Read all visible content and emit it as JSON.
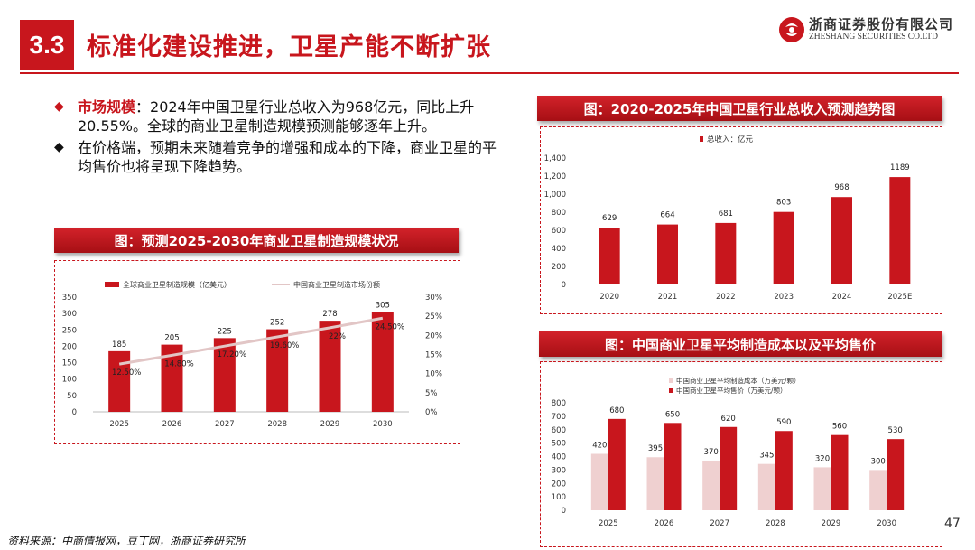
{
  "header": {
    "section_number": "3.3",
    "title": "标准化建设推进，卫星产能不断扩张",
    "logo_cn": "浙商证券股份有限公司",
    "logo_en": "ZHESHANG SECURITIES CO.LTD"
  },
  "bullets": [
    {
      "label": "市场规模",
      "text": "：2024年中国卫星行业总收入为968亿元，同比上升20.55%。全球的商业卫星制造规模预测能够逐年上升。"
    },
    {
      "label": "",
      "text": "在价格端，预期未来随着竞争的增强和成本的下降，商业卫星的平均售价也将呈现下降趋势。"
    }
  ],
  "chart_titles": {
    "left": "图：预测2025-2030年商业卫星制造规模状况",
    "right_top": "图：2020-2025年中国卫星行业总收入预测趋势图",
    "right_bottom": "图：中国商业卫星平均制造成本以及平均售价"
  },
  "footer": {
    "source": "资料来源：中商情报网，豆丁网，浙商证券研究所",
    "page_number": "47"
  },
  "colors": {
    "accent": "#c8161d",
    "light_bar": "#efd0d0",
    "line": "#e2c6c6"
  },
  "chart_data": [
    {
      "type": "bar",
      "categories": [
        "2025",
        "2026",
        "2027",
        "2028",
        "2029",
        "2030"
      ],
      "series": [
        {
          "name": "全球商业卫星制造规模（亿美元）",
          "values": [
            185,
            205,
            225,
            252,
            278,
            305
          ],
          "axis": "left"
        },
        {
          "name": "中国商业卫星制造市场份额",
          "type": "line",
          "values": [
            12.5,
            14.8,
            17.2,
            19.6,
            22,
            24.5
          ],
          "labels": [
            "12.50%",
            "14.80%",
            "17.20%",
            "19.60%",
            "22%",
            "24.50%"
          ],
          "axis": "right"
        }
      ],
      "ylim": [
        0,
        350
      ],
      "yticks": [
        "0",
        "50",
        "100",
        "150",
        "200",
        "250",
        "300",
        "350"
      ],
      "y2lim": [
        0,
        30
      ],
      "y2ticks": [
        "0%",
        "5%",
        "10%",
        "15%",
        "20%",
        "25%",
        "30%"
      ],
      "legend": "top"
    },
    {
      "type": "bar",
      "categories": [
        "2020",
        "2021",
        "2022",
        "2023",
        "2024",
        "2025E"
      ],
      "series": [
        {
          "name": "总收入：亿元",
          "values": [
            629,
            664,
            681,
            803,
            968,
            1189
          ]
        }
      ],
      "ylim": [
        0,
        1400
      ],
      "yticks": [
        "0",
        "200",
        "400",
        "600",
        "800",
        "1,000",
        "1,200",
        "1,400"
      ],
      "legend": "top-left"
    },
    {
      "type": "bar",
      "categories": [
        "2025",
        "2026",
        "2027",
        "2028",
        "2029",
        "2030"
      ],
      "series": [
        {
          "name": "中国商业卫星平均制造成本（万美元/颗）",
          "values": [
            420,
            395,
            370,
            345,
            320,
            300
          ]
        },
        {
          "name": "中国商业卫星平均售价（万美元/颗）",
          "values": [
            680,
            650,
            620,
            590,
            560,
            530
          ]
        }
      ],
      "ylim": [
        0,
        800
      ],
      "yticks": [
        "0",
        "100",
        "200",
        "300",
        "400",
        "500",
        "600",
        "700",
        "800"
      ],
      "legend": "top-left"
    }
  ]
}
